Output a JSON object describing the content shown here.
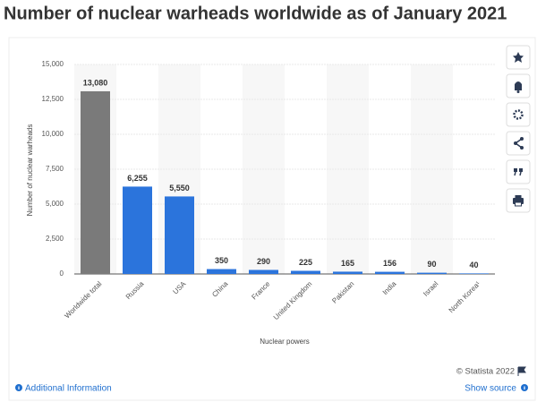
{
  "chart_data": {
    "type": "bar",
    "title": "Number of nuclear warheads worldwide as of January 2021",
    "y_label": "Number of nuclear warheads",
    "x_label": "Nuclear powers",
    "categories": [
      "Worldwide total",
      "Russia",
      "USA",
      "China",
      "France",
      "United Kingdom",
      "Pakistan",
      "India",
      "Israel",
      "North Korea¹"
    ],
    "values": [
      13080,
      6255,
      5550,
      350,
      290,
      225,
      165,
      156,
      90,
      40
    ],
    "value_labels": [
      "13,080",
      "6,255",
      "5,550",
      "350",
      "290",
      "225",
      "165",
      "156",
      "90",
      "40"
    ],
    "colors": [
      "#7a7a7a",
      "#2b74dc",
      "#2b74dc",
      "#2b74dc",
      "#2b74dc",
      "#2b74dc",
      "#2b74dc",
      "#2b74dc",
      "#2b74dc",
      "#2b74dc"
    ],
    "ylim": [
      0,
      15000
    ],
    "yticks": [
      0,
      {
        "value": 2500,
        "label": "2,500"
      },
      {
        "value": 5000,
        "label": "5,000"
      },
      {
        "value": 7500,
        "label": "7,500"
      },
      {
        "value": 10000,
        "label": "10,000"
      },
      {
        "value": 12500,
        "label": "12,500"
      },
      {
        "value": 15000,
        "label": "15,000"
      }
    ],
    "grid": true
  },
  "footer": {
    "credit": "© Statista 2022",
    "additional_info": "Additional Information",
    "show_source": "Show source"
  }
}
